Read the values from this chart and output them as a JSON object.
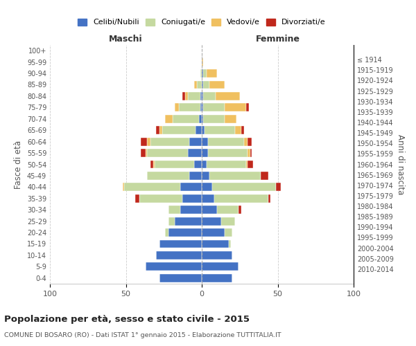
{
  "age_groups": [
    "0-4",
    "5-9",
    "10-14",
    "15-19",
    "20-24",
    "25-29",
    "30-34",
    "35-39",
    "40-44",
    "45-49",
    "50-54",
    "55-59",
    "60-64",
    "65-69",
    "70-74",
    "75-79",
    "80-84",
    "85-89",
    "90-94",
    "95-99",
    "100+"
  ],
  "birth_years": [
    "2010-2014",
    "2005-2009",
    "2000-2004",
    "1995-1999",
    "1990-1994",
    "1985-1989",
    "1980-1984",
    "1975-1979",
    "1970-1974",
    "1965-1969",
    "1960-1964",
    "1955-1959",
    "1950-1954",
    "1945-1949",
    "1940-1944",
    "1935-1939",
    "1930-1934",
    "1925-1929",
    "1920-1924",
    "1915-1919",
    "≤ 1914"
  ],
  "maschi": {
    "celibi": [
      28,
      37,
      30,
      28,
      22,
      18,
      14,
      13,
      14,
      8,
      5,
      9,
      8,
      4,
      2,
      1,
      1,
      0,
      0,
      0,
      0
    ],
    "coniugati": [
      0,
      0,
      0,
      0,
      2,
      4,
      8,
      28,
      37,
      28,
      26,
      27,
      26,
      22,
      17,
      14,
      8,
      3,
      1,
      0,
      0
    ],
    "vedovi": [
      0,
      0,
      0,
      0,
      0,
      0,
      0,
      0,
      1,
      0,
      1,
      1,
      2,
      2,
      5,
      3,
      2,
      2,
      0,
      0,
      0
    ],
    "divorziati": [
      0,
      0,
      0,
      0,
      0,
      0,
      0,
      3,
      0,
      0,
      2,
      3,
      4,
      2,
      0,
      0,
      2,
      0,
      0,
      0,
      0
    ]
  },
  "femmine": {
    "nubili": [
      20,
      24,
      20,
      18,
      15,
      13,
      10,
      8,
      7,
      5,
      3,
      4,
      4,
      2,
      1,
      1,
      1,
      1,
      1,
      0,
      0
    ],
    "coniugate": [
      0,
      0,
      0,
      1,
      5,
      9,
      14,
      36,
      42,
      34,
      26,
      26,
      24,
      20,
      14,
      14,
      8,
      4,
      2,
      0,
      0
    ],
    "vedove": [
      0,
      0,
      0,
      0,
      0,
      0,
      0,
      0,
      0,
      0,
      1,
      2,
      2,
      4,
      8,
      14,
      16,
      10,
      7,
      1,
      0
    ],
    "divorziate": [
      0,
      0,
      0,
      0,
      0,
      0,
      2,
      1,
      3,
      5,
      4,
      1,
      3,
      2,
      0,
      2,
      0,
      0,
      0,
      0,
      0
    ]
  },
  "colors": {
    "celibe": "#4472c4",
    "coniugato": "#c5d9a0",
    "vedovo": "#f0c060",
    "divorziato": "#c0281c"
  },
  "xlim": 100,
  "title": "Popolazione per età, sesso e stato civile - 2015",
  "subtitle": "COMUNE DI BOSARO (RO) - Dati ISTAT 1° gennaio 2015 - Elaborazione TUTTITALIA.IT",
  "ylabel_left": "Fasce di età",
  "ylabel_right": "Anni di nascita",
  "xlabel_left": "Maschi",
  "xlabel_right": "Femmine",
  "background_color": "#ffffff",
  "grid_color": "#cccccc"
}
